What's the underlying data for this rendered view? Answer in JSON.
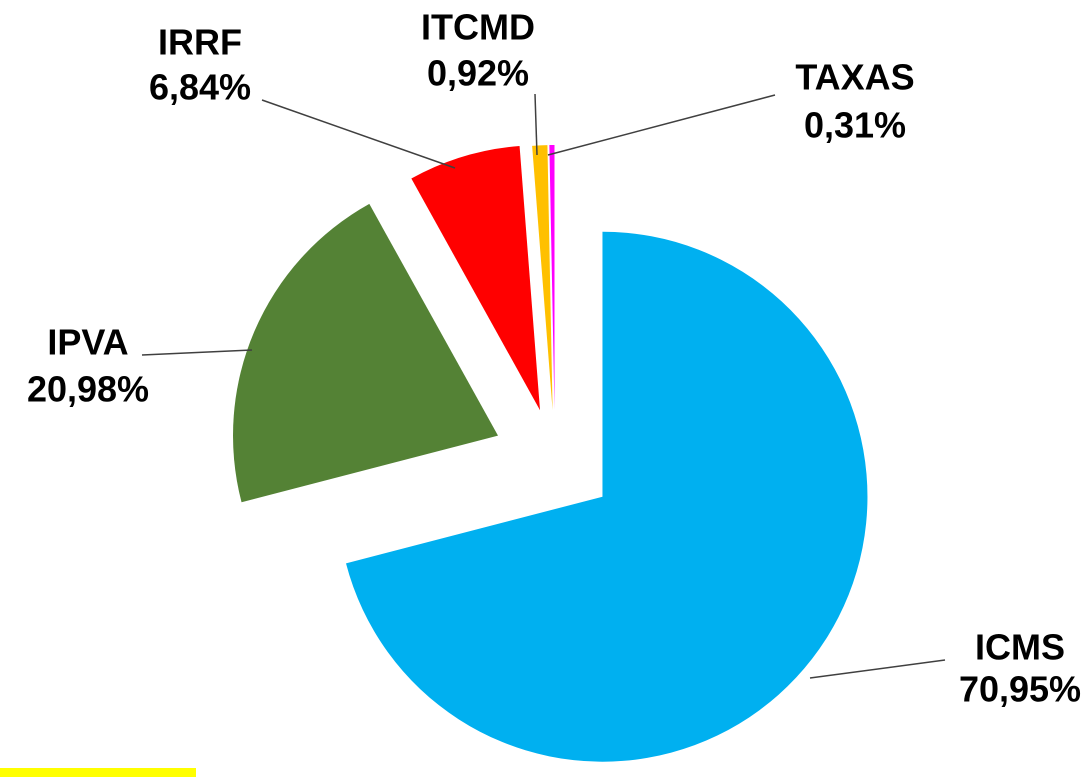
{
  "chart_data": {
    "type": "pie",
    "categories": [
      "ICMS",
      "IPVA",
      "IRRF",
      "ITCMD",
      "TAXAS"
    ],
    "values": [
      70.95,
      20.98,
      6.84,
      0.92,
      0.31
    ],
    "value_labels": [
      "70,95%",
      "20,98%",
      "6,84%",
      "0,92%",
      "0,31%"
    ],
    "colors": [
      "#00b0f0",
      "#548235",
      "#ff0000",
      "#ffc000",
      "#ff00ff"
    ]
  }
}
